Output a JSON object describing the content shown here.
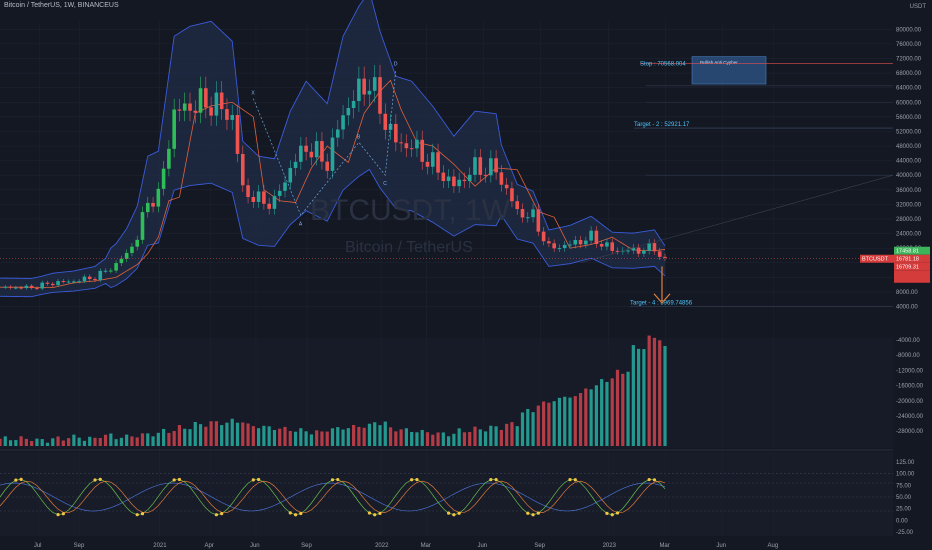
{
  "header": {
    "title": "Bitcoin / TetherUS, 1W, BINANCEUS",
    "currency": "USDT"
  },
  "watermark": {
    "symbol": "BTCUSDT, 1W",
    "name": "Bitcoin / TetherUS"
  },
  "colors": {
    "bg": "#141823",
    "up": "#26a69a",
    "down": "#ef5350",
    "bull": "#2ebd59",
    "band": "#3a5bd9",
    "band_fill": "#1f2d4a",
    "ma": "#e0603a",
    "target": "#4fc3f7",
    "grid": "#1e2330"
  },
  "chart_data": {
    "type": "candlestick",
    "price_axis": [
      "80000.00",
      "76000.00",
      "72000.00",
      "68000.00",
      "64000.00",
      "60000.00",
      "56000.00",
      "52000.00",
      "48000.00",
      "44000.00",
      "40000.00",
      "36000.00",
      "32000.00",
      "28000.00",
      "24000.00",
      "20000.00",
      "16000.00",
      "12000.00",
      "8000.00",
      "4000.00"
    ],
    "volume_axis": [
      "-4000.00",
      "-8000.00",
      "-12000.00",
      "-16000.00",
      "-20000.00",
      "-24000.00",
      "-28000.00"
    ],
    "osc_axis": [
      "125.00",
      "100.00",
      "75.00",
      "50.00",
      "25.00",
      "0.00",
      "-25.00"
    ],
    "time_axis": [
      "Jul",
      "Sep",
      "2021",
      "Apr",
      "Jun",
      "Sep",
      "2022",
      "Mar",
      "Jun",
      "Sep",
      "2023",
      "Mar",
      "Jun",
      "Aug"
    ],
    "price_path": [
      [
        0,
        9300
      ],
      [
        6,
        9200
      ],
      [
        10,
        10500
      ],
      [
        14,
        11000
      ],
      [
        18,
        12000
      ],
      [
        22,
        15500
      ],
      [
        24,
        18500
      ],
      [
        26,
        23000
      ],
      [
        28,
        33000
      ],
      [
        30,
        34000
      ],
      [
        33,
        57000
      ],
      [
        36,
        59000
      ],
      [
        40,
        60000
      ],
      [
        44,
        56000
      ],
      [
        46,
        36000
      ],
      [
        49,
        33000
      ],
      [
        52,
        32500
      ],
      [
        55,
        42000
      ],
      [
        58,
        48000
      ],
      [
        62,
        43500
      ],
      [
        65,
        57000
      ],
      [
        68,
        63000
      ],
      [
        70,
        66000
      ],
      [
        72,
        58000
      ],
      [
        75,
        49000
      ],
      [
        78,
        48000
      ],
      [
        82,
        43000
      ],
      [
        86,
        37000
      ],
      [
        90,
        42000
      ],
      [
        94,
        41500
      ],
      [
        98,
        30000
      ],
      [
        101,
        28500
      ],
      [
        104,
        20000
      ],
      [
        108,
        21000
      ],
      [
        112,
        23000
      ],
      [
        116,
        19500
      ],
      [
        120,
        19300
      ],
      [
        124,
        20000
      ],
      [
        126,
        16500
      ]
    ],
    "volume": [
      3,
      3,
      2,
      3,
      4,
      3,
      5,
      4,
      5,
      6,
      8,
      10,
      12,
      13,
      14,
      11,
      10,
      9,
      8,
      7,
      9,
      10,
      11,
      13,
      9,
      8,
      7,
      6,
      8,
      9,
      10,
      12,
      20,
      25,
      28,
      30,
      35,
      40,
      45,
      60,
      66,
      60
    ],
    "annotations": {
      "stop": "Stop : 70568.004",
      "target2": "Target - 2 : 52921.17",
      "target4": "Target - 4 : 3969.74856",
      "box_label": "Bullish Anti Cypher",
      "points": [
        "X",
        "A",
        "B",
        "C",
        "D"
      ]
    },
    "last_price_tags": [
      "17458.81",
      "16781.18",
      "16709.31"
    ],
    "symbol_tag": "BTCUSDT"
  }
}
